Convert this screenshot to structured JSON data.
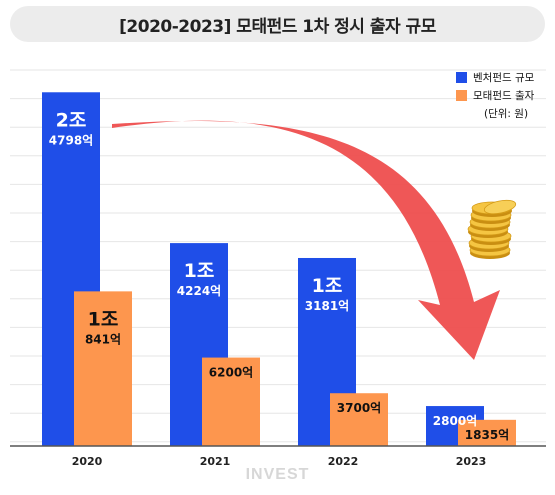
{
  "title": "[2020-2023] 모태펀드 1차 정시 출자 규모",
  "watermark": "INVEST",
  "legend": {
    "items": [
      {
        "label": "벤처펀드 규모",
        "color": "#1f4ee8"
      },
      {
        "label": "모태펀드 출자",
        "color": "#fd964e"
      }
    ],
    "unit": "(단위: 원)"
  },
  "chart_data": {
    "type": "bar",
    "categories": [
      "2020",
      "2021",
      "2022",
      "2023"
    ],
    "series": [
      {
        "name": "벤처펀드 규모",
        "values": [
          24798,
          14224,
          13181,
          2800
        ],
        "labels": [
          {
            "big": "2조",
            "small": "4798억"
          },
          {
            "big": "1조",
            "small": "4224억"
          },
          {
            "big": "1조",
            "small": "3181억"
          },
          {
            "big": "",
            "small": "2800억"
          }
        ],
        "color": "#1f4ee8"
      },
      {
        "name": "모태펀드 출자",
        "values": [
          10841,
          6200,
          3700,
          1835
        ],
        "labels": [
          {
            "big": "1조",
            "small": "841억"
          },
          {
            "big": "",
            "small": "6200억"
          },
          {
            "big": "",
            "small": "3700억"
          },
          {
            "big": "",
            "small": "1835억"
          }
        ],
        "color": "#fd964e"
      }
    ],
    "unit": "억원",
    "ylim": [
      0,
      26500
    ],
    "grid": true,
    "legend_position": "top-right"
  }
}
